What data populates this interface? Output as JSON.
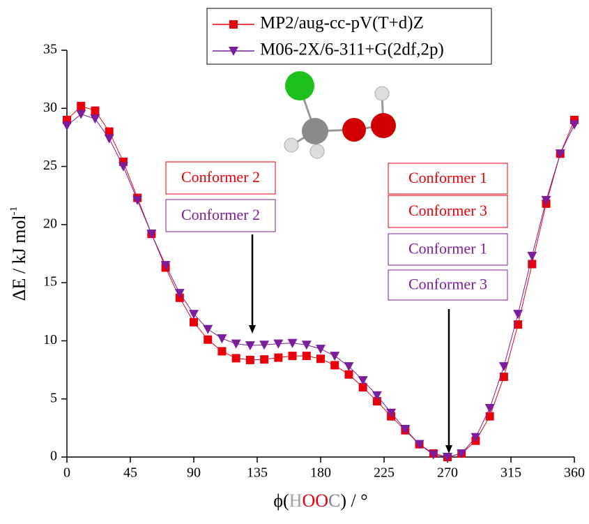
{
  "chart_data": {
    "type": "line",
    "x": [
      0,
      10,
      20,
      30,
      40,
      50,
      60,
      70,
      80,
      90,
      100,
      110,
      120,
      130,
      140,
      150,
      160,
      170,
      180,
      190,
      200,
      210,
      220,
      230,
      240,
      250,
      260,
      270,
      280,
      290,
      300,
      310,
      320,
      330,
      340,
      350,
      360
    ],
    "series": [
      {
        "name": "MP2/aug-cc-pV(T+d)Z",
        "color": "#e8000b",
        "marker": "square",
        "values": [
          29.0,
          30.2,
          29.8,
          28.0,
          25.4,
          22.3,
          19.2,
          16.3,
          13.7,
          11.6,
          10.1,
          9.1,
          8.5,
          8.35,
          8.4,
          8.55,
          8.7,
          8.7,
          8.45,
          7.9,
          7.1,
          6.0,
          4.8,
          3.5,
          2.3,
          1.1,
          0.3,
          0,
          0.3,
          1.4,
          3.5,
          6.9,
          11.4,
          16.6,
          21.8,
          26.1,
          29.0
        ]
      },
      {
        "name": "M06-2X/6-311+G(2df,2p)",
        "color": "#7a1e9c",
        "marker": "triangle-down",
        "values": [
          28.5,
          29.5,
          29.1,
          27.4,
          25.0,
          22.1,
          19.2,
          16.5,
          14.1,
          12.3,
          11.0,
          10.2,
          9.75,
          9.6,
          9.65,
          9.75,
          9.8,
          9.65,
          9.3,
          8.7,
          7.8,
          6.6,
          5.3,
          3.8,
          2.4,
          1.1,
          0.2,
          0,
          0.3,
          1.7,
          4.2,
          7.8,
          12.3,
          17.3,
          22.1,
          26.1,
          28.6
        ]
      }
    ],
    "xlim": [
      0,
      360
    ],
    "xticks": [
      0,
      45,
      90,
      135,
      180,
      225,
      270,
      315,
      360
    ],
    "ylim": [
      0,
      35
    ],
    "yticks": [
      0,
      5,
      10,
      15,
      20,
      25,
      30,
      35
    ],
    "xlabel": [
      {
        "text": "ϕ(",
        "color": "#000000"
      },
      {
        "text": "H",
        "color": "#a0a0a0"
      },
      {
        "text": "OO",
        "color": "#e8000b"
      },
      {
        "text": "C",
        "color": "#808080"
      },
      {
        "text": ") / °",
        "color": "#000000"
      }
    ],
    "ylabel": "ΔE / kJ mol",
    "ylabel_superscript": "-1",
    "annotations": [
      {
        "labels": [
          {
            "text": "Conformer 2",
            "color": "#e8000b"
          },
          {
            "text": "Conformer 2",
            "color": "#7a1e9c"
          }
        ]
      },
      {
        "labels": [
          {
            "text": "Conformer 1",
            "color": "#e8000b"
          },
          {
            "text": "Conformer 3",
            "color": "#e8000b"
          },
          {
            "text": "Conformer 1",
            "color": "#7a1e9c"
          },
          {
            "text": "Conformer 3",
            "color": "#7a1e9c"
          }
        ]
      }
    ]
  }
}
